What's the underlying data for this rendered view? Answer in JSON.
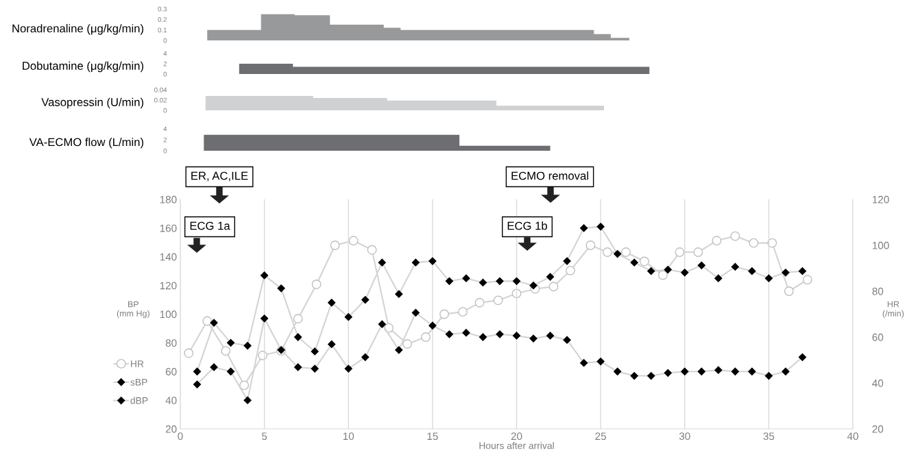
{
  "chart_data": [
    {
      "type": "histogram",
      "ylabel": "Noradrenaline (μg/kg/min)",
      "bins": [
        1.6,
        4.8,
        6.8,
        8.9,
        12.1,
        13.1,
        24.6,
        25.6,
        26.7
      ],
      "values": [
        0.1,
        0.25,
        0.24,
        0.15,
        0.12,
        0.1,
        0.06,
        0.025
      ],
      "color": "#98999b",
      "xlim": [
        0,
        40
      ],
      "ylim": [
        0,
        0.3
      ],
      "yticks": [
        0,
        0.1,
        0.2,
        0.3
      ],
      "tick_labels": "y"
    },
    {
      "type": "histogram",
      "ylabel": "Dobutamine (μg/kg/min)",
      "bins": [
        3.5,
        6.7,
        27.9
      ],
      "values": [
        2,
        1.4
      ],
      "color": "#6d6e71",
      "xlim": [
        0,
        40
      ],
      "ylim": [
        0,
        4
      ],
      "yticks": [
        0,
        2,
        4
      ],
      "tick_labels": "y"
    },
    {
      "type": "histogram",
      "ylabel": "Vasopressin (U/min)",
      "bins": [
        1.5,
        7.9,
        12.3,
        18.8,
        25.2
      ],
      "values": [
        0.028,
        0.024,
        0.019,
        0.009
      ],
      "color": "#d0d1d3",
      "xlim": [
        0,
        40
      ],
      "ylim": [
        0,
        0.04
      ],
      "yticks": [
        0,
        0.02,
        0.04
      ],
      "tick_labels": "y"
    },
    {
      "type": "histogram",
      "ylabel": "VA-ECMO flow (L/min)",
      "bins": [
        1.4,
        16.6,
        22.0
      ],
      "values": [
        2.9,
        0.9
      ],
      "color": "#6d6e71",
      "xlim": [
        0,
        40
      ],
      "ylim": [
        0,
        4
      ],
      "yticks": [
        0,
        2,
        4
      ],
      "tick_labels": "y"
    },
    {
      "type": "line",
      "xlabel": "Hours after arrival",
      "ylabel": "BP\n(mm Hg)",
      "y2label": "HR\n(/min)",
      "xlim": [
        0,
        40
      ],
      "xticks": [
        0,
        5,
        10,
        15,
        20,
        25,
        30,
        35,
        40
      ],
      "ylim": [
        20,
        180
      ],
      "yticks": [
        20,
        40,
        60,
        80,
        100,
        120,
        140,
        160,
        180
      ],
      "y2lim": [
        20,
        120
      ],
      "y2ticks": [
        20,
        40,
        60,
        80,
        100,
        120
      ],
      "grid": "x",
      "legend": "left",
      "series": [
        {
          "name": "HR",
          "axis": "y2",
          "marker": "circle",
          "color": "#bfbfbf",
          "x": [
            0.5,
            1.6,
            2.7,
            3.8,
            4.9,
            6.0,
            7.0,
            8.1,
            9.2,
            10.3,
            11.4,
            12.4,
            13.5,
            14.6,
            15.7,
            16.8,
            17.8,
            18.9,
            20.0,
            21.1,
            22.2,
            23.2,
            24.4,
            25.4,
            26.5,
            27.6,
            28.7,
            29.7,
            30.8,
            31.9,
            33.0,
            34.1,
            35.2,
            36.2,
            37.3
          ],
          "values": [
            53,
            67,
            54,
            39,
            52,
            54,
            68,
            83,
            100,
            102,
            98,
            64,
            57,
            60,
            70,
            71,
            75,
            76,
            79,
            81,
            82,
            89,
            100,
            97,
            97,
            93,
            87,
            97,
            97,
            102,
            104,
            101,
            101,
            80,
            85
          ]
        },
        {
          "name": "sBP",
          "marker": "diamond",
          "color": "#000000",
          "x": [
            1,
            2,
            3,
            4,
            5,
            6,
            7,
            8,
            9,
            10,
            11,
            12,
            13,
            14,
            15,
            16,
            17,
            18,
            19,
            20,
            21,
            22,
            23,
            24,
            25,
            26,
            27,
            28,
            29,
            30,
            31,
            32,
            33,
            34,
            35,
            36,
            37
          ],
          "values": [
            60,
            94,
            80,
            78,
            127,
            118,
            84,
            74,
            108,
            98,
            110,
            136,
            114,
            136,
            137,
            123,
            125,
            122,
            123,
            123,
            120,
            126,
            137,
            160,
            161,
            142,
            136,
            130,
            131,
            129,
            134,
            125,
            133,
            130,
            125,
            129,
            130
          ]
        },
        {
          "name": "dBP",
          "marker": "diamond",
          "color": "#000000",
          "x": [
            1,
            2,
            3,
            4,
            5,
            6,
            7,
            8,
            9,
            10,
            11,
            12,
            13,
            14,
            15,
            16,
            17,
            18,
            19,
            20,
            21,
            22,
            23,
            24,
            25,
            26,
            27,
            28,
            29,
            30,
            31,
            32,
            33,
            34,
            35,
            36,
            37
          ],
          "values": [
            51,
            63,
            60,
            40,
            97,
            75,
            63,
            62,
            79,
            62,
            70,
            93,
            75,
            101,
            92,
            86,
            87,
            84,
            86,
            85,
            83,
            85,
            82,
            66,
            67,
            60,
            57,
            57,
            59,
            60,
            60,
            61,
            60,
            60,
            57,
            60,
            70
          ]
        }
      ],
      "annotations": [
        "ER, AC,ILE",
        "ECG 1a",
        "ECMO removal",
        "ECG 1b"
      ]
    }
  ]
}
